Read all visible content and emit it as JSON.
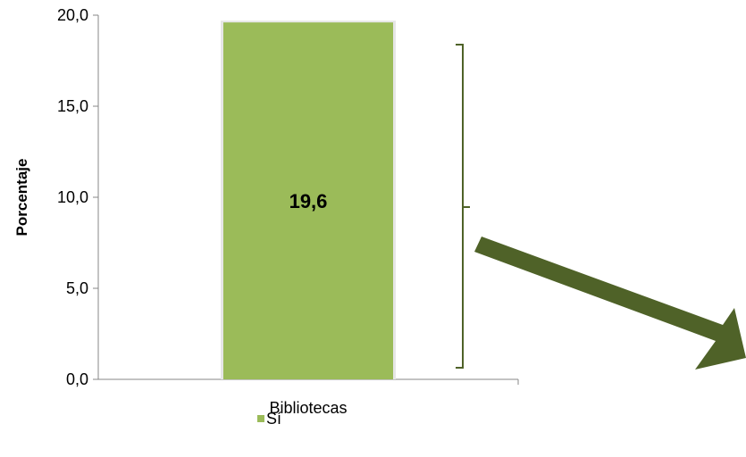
{
  "chart_data": {
    "type": "bar",
    "categories": [
      "Bibliotecas"
    ],
    "series": [
      {
        "name": "Sí",
        "values": [
          19.6
        ],
        "color": "#9bbb59"
      }
    ],
    "data_labels": [
      "19,6"
    ],
    "ylabel": "Porcentaje",
    "xlabel": "",
    "ylim": [
      0,
      20
    ],
    "y_ticks": [
      "0,0",
      "5,0",
      "10,0",
      "15,0",
      "20,0"
    ],
    "grid": false,
    "legend": {
      "placement": "bottom",
      "entries": [
        "Sí"
      ]
    }
  },
  "annotations": {
    "bracket_color": "#4f6228",
    "arrow_color": "#4f6228"
  }
}
